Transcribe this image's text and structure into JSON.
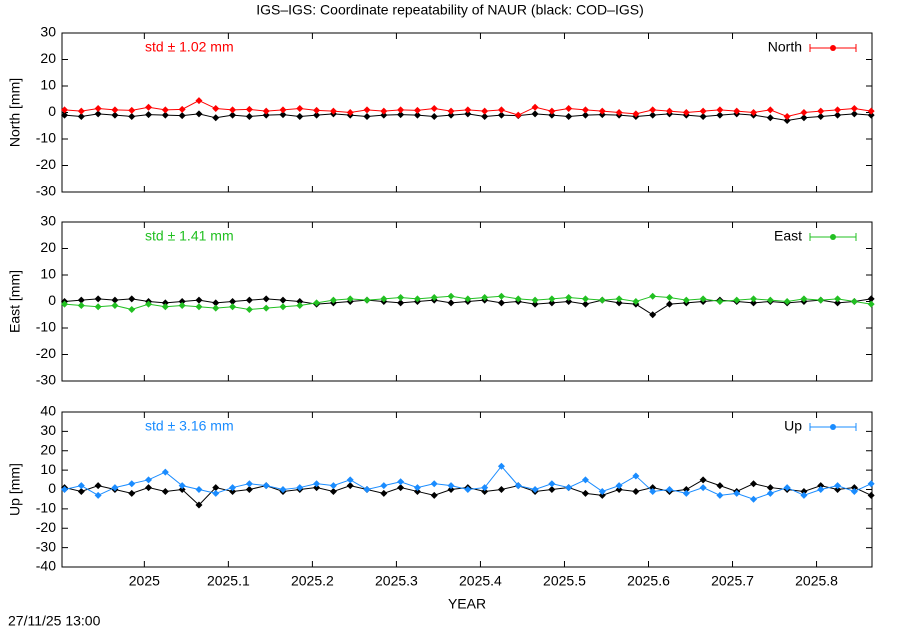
{
  "title": "IGS–IGS: Coordinate repeatability of NAUR (black: COD–IGS)",
  "footer": "27/11/25 13:00",
  "chart_data": [
    {
      "type": "line",
      "ylabel": "North [mm]",
      "annotation": "std ± 1.02 mm",
      "xlim": [
        2024.902,
        2025.866
      ],
      "xticks": [
        2025,
        2025.1,
        2025.2,
        2025.3,
        2025.4,
        2025.5,
        2025.6,
        2025.7,
        2025.8
      ],
      "ylim": [
        -30,
        30
      ],
      "yticks": [
        -30,
        -20,
        -10,
        0,
        10,
        20,
        30
      ],
      "x": [
        2024.905,
        2024.925,
        2024.945,
        2024.965,
        2024.985,
        2025.005,
        2025.025,
        2025.045,
        2025.065,
        2025.085,
        2025.105,
        2025.125,
        2025.145,
        2025.165,
        2025.185,
        2025.205,
        2025.225,
        2025.245,
        2025.265,
        2025.285,
        2025.305,
        2025.325,
        2025.345,
        2025.365,
        2025.385,
        2025.405,
        2025.425,
        2025.445,
        2025.465,
        2025.485,
        2025.505,
        2025.525,
        2025.545,
        2025.565,
        2025.585,
        2025.605,
        2025.625,
        2025.645,
        2025.665,
        2025.685,
        2025.705,
        2025.725,
        2025.745,
        2025.765,
        2025.785,
        2025.805,
        2025.825,
        2025.845,
        2025.865
      ],
      "series": [
        {
          "color": "#000000",
          "values": [
            -1,
            -1.5,
            -0.5,
            -1,
            -1.5,
            -0.8,
            -1,
            -1.2,
            -0.5,
            -2,
            -1,
            -1.5,
            -1,
            -0.8,
            -1.5,
            -1,
            -0.5,
            -1,
            -1.5,
            -1,
            -0.8,
            -1,
            -1.5,
            -1,
            -0.5,
            -1.5,
            -1,
            -1.2,
            -0.5,
            -1,
            -1.5,
            -1,
            -0.8,
            -1,
            -1.5,
            -1,
            -0.5,
            -1,
            -1.5,
            -1,
            -0.5,
            -1,
            -2,
            -3,
            -2,
            -1.5,
            -1,
            -0.5,
            -1
          ]
        },
        {
          "name": "North",
          "color": "#ff0000",
          "values": [
            1,
            0.5,
            1.5,
            1,
            0.8,
            2,
            1,
            1.2,
            4.5,
            1.5,
            1,
            1.2,
            0.5,
            1,
            1.5,
            0.8,
            0.5,
            0,
            1,
            0.5,
            1,
            0.8,
            1.5,
            0.5,
            1,
            0.5,
            1,
            -1,
            2,
            0.5,
            1.5,
            1,
            0.5,
            0,
            -0.5,
            1,
            0.5,
            0,
            0.5,
            1,
            0.5,
            0,
            1,
            -1.5,
            0,
            0.5,
            1,
            1.5,
            0.5
          ]
        }
      ]
    },
    {
      "type": "line",
      "ylabel": "East [mm]",
      "annotation": "std ± 1.41 mm",
      "xlim": [
        2024.902,
        2025.866
      ],
      "xticks": [
        2025,
        2025.1,
        2025.2,
        2025.3,
        2025.4,
        2025.5,
        2025.6,
        2025.7,
        2025.8
      ],
      "ylim": [
        -30,
        30
      ],
      "yticks": [
        -30,
        -20,
        -10,
        0,
        10,
        20,
        30
      ],
      "x": [
        2024.905,
        2024.925,
        2024.945,
        2024.965,
        2024.985,
        2025.005,
        2025.025,
        2025.045,
        2025.065,
        2025.085,
        2025.105,
        2025.125,
        2025.145,
        2025.165,
        2025.185,
        2025.205,
        2025.225,
        2025.245,
        2025.265,
        2025.285,
        2025.305,
        2025.325,
        2025.345,
        2025.365,
        2025.385,
        2025.405,
        2025.425,
        2025.445,
        2025.465,
        2025.485,
        2025.505,
        2025.525,
        2025.545,
        2025.565,
        2025.585,
        2025.605,
        2025.625,
        2025.645,
        2025.665,
        2025.685,
        2025.705,
        2025.725,
        2025.745,
        2025.765,
        2025.785,
        2025.805,
        2025.825,
        2025.845,
        2025.865
      ],
      "series": [
        {
          "color": "#000000",
          "values": [
            0,
            0.5,
            1,
            0.5,
            1,
            0,
            -0.5,
            0,
            0.5,
            -0.5,
            0,
            0.5,
            1,
            0.5,
            0,
            -1,
            -0.5,
            0,
            0.5,
            0,
            -0.5,
            0,
            0.5,
            -0.5,
            0,
            0.5,
            -0.5,
            0,
            -1,
            -0.5,
            0,
            -1,
            0.5,
            -0.5,
            -1,
            -5,
            -1,
            -0.5,
            0,
            0.5,
            0,
            -0.5,
            0,
            -0.5,
            0,
            0.5,
            -0.5,
            0,
            1
          ]
        },
        {
          "name": "East",
          "color": "#22c022",
          "values": [
            -1,
            -1.5,
            -2,
            -1.5,
            -3,
            -1,
            -2,
            -1.5,
            -2,
            -2.5,
            -2,
            -3,
            -2.5,
            -2,
            -1.5,
            -0.5,
            0.5,
            1,
            0.5,
            1,
            1.5,
            1,
            1.5,
            2,
            1,
            1.5,
            2,
            1,
            0.5,
            1,
            1.5,
            1,
            0.5,
            1,
            0,
            2,
            1.5,
            0.5,
            1,
            0,
            0.5,
            1,
            0.5,
            0,
            1,
            0.5,
            1,
            0,
            -1
          ]
        }
      ]
    },
    {
      "type": "line",
      "ylabel": "Up [mm]",
      "annotation": "std ± 3.16 mm",
      "xlabel": "YEAR",
      "xlim": [
        2024.902,
        2025.866
      ],
      "xticks": [
        2025,
        2025.1,
        2025.2,
        2025.3,
        2025.4,
        2025.5,
        2025.6,
        2025.7,
        2025.8
      ],
      "ylim": [
        -40,
        40
      ],
      "yticks": [
        -40,
        -30,
        -20,
        -10,
        0,
        10,
        20,
        30,
        40
      ],
      "x": [
        2024.905,
        2024.925,
        2024.945,
        2024.965,
        2024.985,
        2025.005,
        2025.025,
        2025.045,
        2025.065,
        2025.085,
        2025.105,
        2025.125,
        2025.145,
        2025.165,
        2025.185,
        2025.205,
        2025.225,
        2025.245,
        2025.265,
        2025.285,
        2025.305,
        2025.325,
        2025.345,
        2025.365,
        2025.385,
        2025.405,
        2025.425,
        2025.445,
        2025.465,
        2025.485,
        2025.505,
        2025.525,
        2025.545,
        2025.565,
        2025.585,
        2025.605,
        2025.625,
        2025.645,
        2025.665,
        2025.685,
        2025.705,
        2025.725,
        2025.745,
        2025.765,
        2025.785,
        2025.805,
        2025.825,
        2025.845,
        2025.865
      ],
      "series": [
        {
          "color": "#000000",
          "values": [
            1,
            -1,
            2,
            0,
            -2,
            1,
            -1,
            0,
            -8,
            1,
            -1,
            0,
            2,
            -1,
            0,
            1,
            -1,
            2,
            0,
            -2,
            1,
            -1,
            -3,
            0,
            1,
            -1,
            0,
            2,
            -1,
            0,
            1,
            -2,
            -3,
            0,
            -1,
            1,
            -1,
            0,
            5,
            2,
            -1,
            3,
            1,
            0,
            -1,
            2,
            0,
            1,
            -3
          ]
        },
        {
          "name": "Up",
          "color": "#1a8cff",
          "values": [
            0,
            2,
            -3,
            1,
            3,
            5,
            9,
            2,
            0,
            -2,
            1,
            3,
            2,
            0,
            1,
            3,
            2,
            5,
            0,
            2,
            4,
            1,
            3,
            2,
            0,
            1,
            12,
            2,
            0,
            3,
            1,
            5,
            -1,
            2,
            7,
            -1,
            0,
            -2,
            1,
            -3,
            -2,
            -5,
            -2,
            1,
            -3,
            0,
            2,
            -1,
            3
          ]
        }
      ]
    }
  ]
}
